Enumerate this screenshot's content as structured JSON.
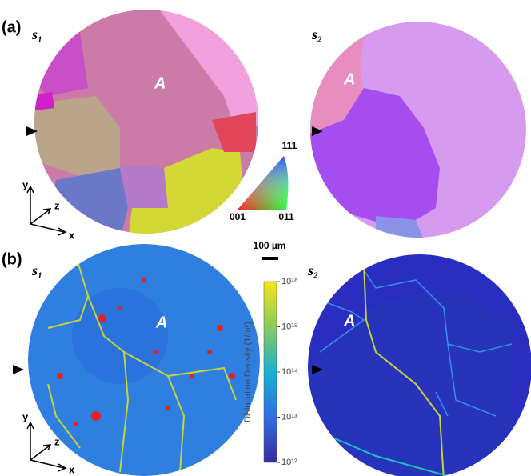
{
  "panel_a": {
    "label": "(a)",
    "s1": "s₁",
    "s2": "s₂",
    "grain_label_1": "A",
    "grain_label_2": "A",
    "ipf": {
      "top": "111",
      "left": "001",
      "right": "011"
    },
    "axes": {
      "y": "y",
      "z": "z",
      "x": "x"
    }
  },
  "scale_bar": "100 µm",
  "panel_b": {
    "label": "(b)",
    "s1": "s₁",
    "s2": "s₂",
    "grain_label_1": "A",
    "grain_label_2": "A",
    "axes": {
      "y": "y",
      "z": "z",
      "x": "x"
    },
    "colorbar": {
      "title": "Dislocation Density (1/m²)",
      "log": true,
      "lim": [
        1000000000000.0,
        1e+16
      ],
      "ticks": [
        {
          "value": 1e+16,
          "label": "10¹⁶"
        },
        {
          "value": 1000000000000000.0,
          "label": "10¹⁵"
        },
        {
          "value": 100000000000000.0,
          "label": "10¹⁴"
        },
        {
          "value": 10000000000000.0,
          "label": "10¹³"
        },
        {
          "value": 1000000000000.0,
          "label": "10¹²"
        }
      ]
    }
  }
}
